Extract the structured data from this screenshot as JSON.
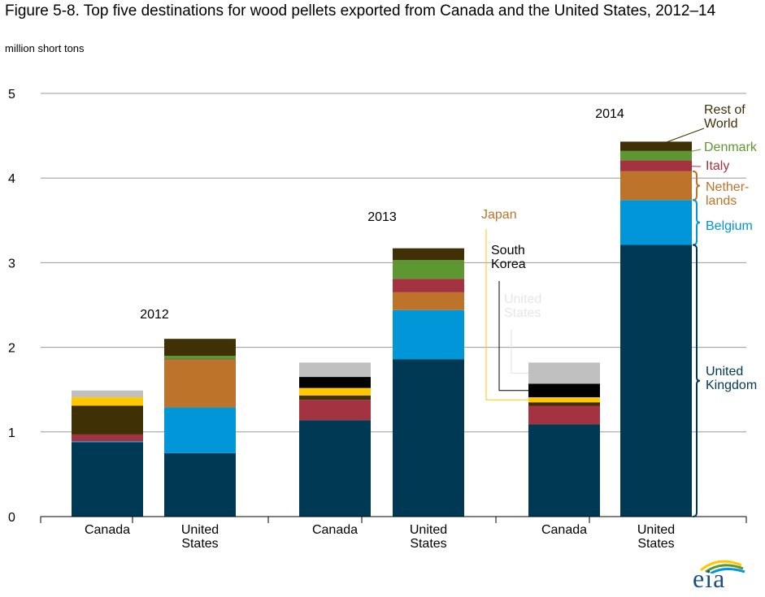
{
  "title": "Figure 5-8. Top five destinations for wood pellets exported from Canada and the United States, 2012–14",
  "units": "million short tons",
  "logo_text": "eia",
  "colors": {
    "United Kingdom": "#003953",
    "Belgium": "#0096d7",
    "Netherlands": "#bd732a",
    "Italy": "#a33340",
    "Denmark": "#5d9732",
    "Rest of World": "#3f3006",
    "South Korea": "#000000",
    "Japan": "#ffc800",
    "United States": "#c0c0c0",
    "gridline": "#9a9a9a",
    "axis": "#000000"
  },
  "chart_data": {
    "type": "bar",
    "stacked": true,
    "ylim": [
      0,
      5
    ],
    "yticks": [
      0,
      1,
      2,
      3,
      4,
      5
    ],
    "grid": true,
    "groups": [
      {
        "label": "2012",
        "bars": [
          {
            "label": "Canada",
            "segments": [
              {
                "name": "United Kingdom",
                "value": 0.88
              },
              {
                "name": "Belgium",
                "value": 0.01
              },
              {
                "name": "Italy",
                "value": 0.08
              },
              {
                "name": "Rest of World",
                "value": 0.34
              },
              {
                "name": "Japan",
                "value": 0.1
              },
              {
                "name": "United States",
                "value": 0.08
              }
            ]
          },
          {
            "label": "United States",
            "segments": [
              {
                "name": "United Kingdom",
                "value": 0.75
              },
              {
                "name": "Belgium",
                "value": 0.54
              },
              {
                "name": "Netherlands",
                "value": 0.56
              },
              {
                "name": "Italy",
                "value": 0.01
              },
              {
                "name": "Denmark",
                "value": 0.04
              },
              {
                "name": "Rest of World",
                "value": 0.2
              }
            ]
          }
        ]
      },
      {
        "label": "2013",
        "bars": [
          {
            "label": "Canada",
            "segments": [
              {
                "name": "United Kingdom",
                "value": 1.14
              },
              {
                "name": "Italy",
                "value": 0.24
              },
              {
                "name": "Rest of World",
                "value": 0.05
              },
              {
                "name": "Japan",
                "value": 0.09
              },
              {
                "name": "South Korea",
                "value": 0.13
              },
              {
                "name": "United States",
                "value": 0.17
              }
            ]
          },
          {
            "label": "United States",
            "segments": [
              {
                "name": "United Kingdom",
                "value": 1.86
              },
              {
                "name": "Belgium",
                "value": 0.58
              },
              {
                "name": "Netherlands",
                "value": 0.21
              },
              {
                "name": "Italy",
                "value": 0.16
              },
              {
                "name": "Denmark",
                "value": 0.22
              },
              {
                "name": "Rest of World",
                "value": 0.14
              }
            ]
          }
        ]
      },
      {
        "label": "2014",
        "bars": [
          {
            "label": "Canada",
            "segments": [
              {
                "name": "United Kingdom",
                "value": 1.09
              },
              {
                "name": "Italy",
                "value": 0.22
              },
              {
                "name": "Rest of World",
                "value": 0.04
              },
              {
                "name": "Japan",
                "value": 0.06
              },
              {
                "name": "South Korea",
                "value": 0.16
              },
              {
                "name": "United States",
                "value": 0.25
              }
            ]
          },
          {
            "label": "United States",
            "segments": [
              {
                "name": "United Kingdom",
                "value": 3.21
              },
              {
                "name": "Belgium",
                "value": 0.53
              },
              {
                "name": "Netherlands",
                "value": 0.34
              },
              {
                "name": "Italy",
                "value": 0.13
              },
              {
                "name": "Denmark",
                "value": 0.11
              },
              {
                "name": "Rest of World",
                "value": 0.11
              }
            ]
          }
        ]
      }
    ],
    "legend_labels": [
      {
        "series": "Rest of World",
        "text": [
          "Rest of",
          "World"
        ]
      },
      {
        "series": "Denmark",
        "text": [
          "Denmark"
        ]
      },
      {
        "series": "Italy",
        "text": [
          "Italy"
        ]
      },
      {
        "series": "Netherlands",
        "text": [
          "Nether-",
          "lands"
        ]
      },
      {
        "series": "Belgium",
        "text": [
          "Belgium"
        ]
      },
      {
        "series": "United Kingdom",
        "text": [
          "United",
          "Kingdom"
        ]
      },
      {
        "series": "Japan",
        "text": [
          "Japan"
        ]
      },
      {
        "series": "South Korea",
        "text": [
          "South",
          "Korea"
        ]
      },
      {
        "series": "United States",
        "text": [
          "United",
          "States"
        ]
      }
    ]
  }
}
